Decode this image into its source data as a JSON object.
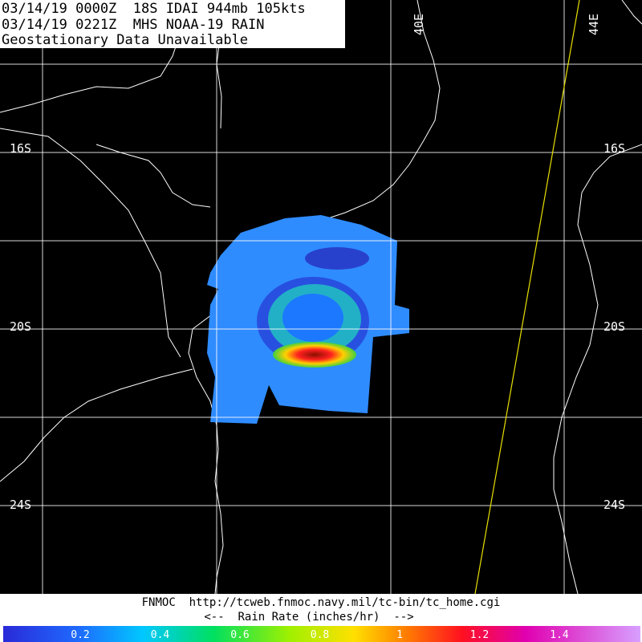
{
  "header": {
    "lines": [
      "03/14/19 0000Z  18S IDAI 944mb 105kts",
      "03/14/19 0221Z  MHS NOAA-19 RAIN",
      "Geostationary Data Unavailable"
    ]
  },
  "map": {
    "lon_labels": [
      "40E",
      "44E"
    ],
    "lat_labels": [
      "16S",
      "20S",
      "24S"
    ]
  },
  "footer": {
    "source": "FNMOC  http://tcweb.fnmoc.navy.mil/tc-bin/tc_home.cgi",
    "legend_title": "<--  Rain Rate (inches/hr)  -->"
  },
  "colorbar": {
    "labels": [
      "0.2",
      "0.4",
      "0.6",
      "0.8",
      "1",
      "1.2",
      "1.4"
    ]
  }
}
